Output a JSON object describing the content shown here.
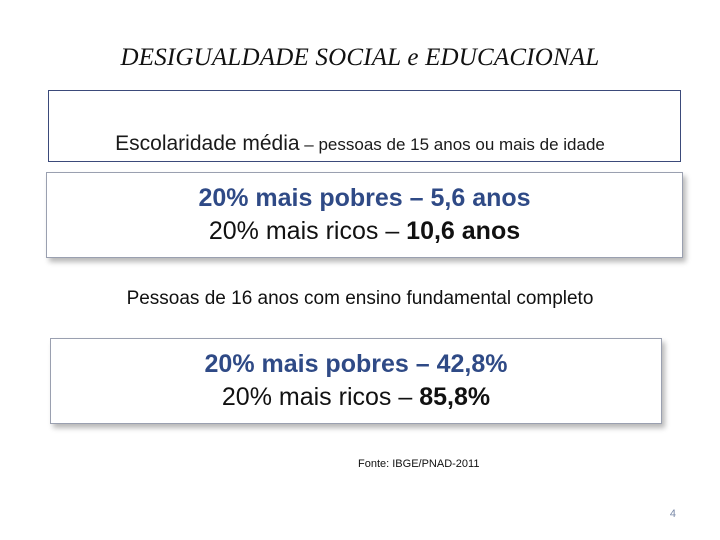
{
  "slide": {
    "title": "DESIGUALDADE SOCIAL  e EDUCACIONAL",
    "section1": {
      "label_strong": "Escolaridade média",
      "label_rest": " – pessoas de 15 anos ou mais de idade",
      "pobres_text": "20% mais pobres – 5,6 anos",
      "ricos_prefix": "20% mais ricos – ",
      "ricos_value": "10,6 anos"
    },
    "section2": {
      "label": "Pessoas de 16 anos com ensino fundamental completo",
      "pobres_text": "20% mais pobres – 42,8%",
      "ricos_prefix": "20% mais ricos – ",
      "ricos_value": "85,8%"
    },
    "source": "Fonte: IBGE/PNAD-2011",
    "page_number": "4"
  },
  "colors": {
    "accent_blue": "#2f4a86",
    "frame_border": "#3b4a7a",
    "page_number": "#7a8aa8"
  }
}
